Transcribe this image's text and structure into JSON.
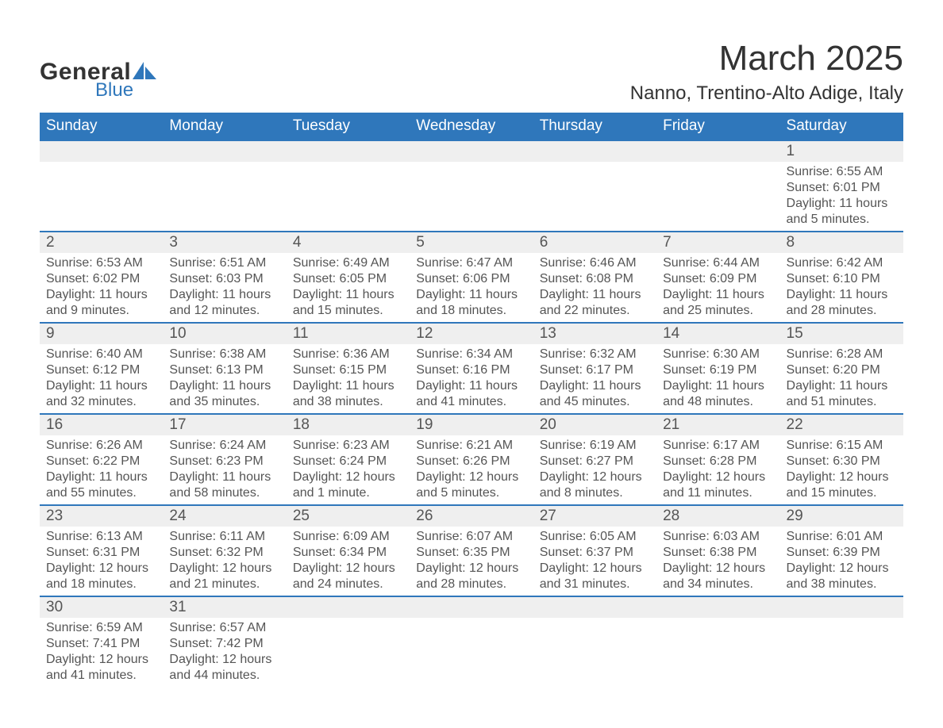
{
  "logo": {
    "text_top": "General",
    "text_bottom": "Blue",
    "accent_color": "#2f77bb"
  },
  "title": {
    "month_year": "March 2025",
    "location": "Nanno, Trentino-Alto Adige, Italy"
  },
  "calendar": {
    "header_bg": "#2f77bb",
    "header_fg": "#ffffff",
    "daynum_bg": "#efefef",
    "row_sep_color": "#2f77bb",
    "text_color": "#555555",
    "day_headers": [
      "Sunday",
      "Monday",
      "Tuesday",
      "Wednesday",
      "Thursday",
      "Friday",
      "Saturday"
    ],
    "weeks": [
      [
        null,
        null,
        null,
        null,
        null,
        null,
        {
          "n": "1",
          "sunrise": "Sunrise: 6:55 AM",
          "sunset": "Sunset: 6:01 PM",
          "daylight": "Daylight: 11 hours and 5 minutes."
        }
      ],
      [
        {
          "n": "2",
          "sunrise": "Sunrise: 6:53 AM",
          "sunset": "Sunset: 6:02 PM",
          "daylight": "Daylight: 11 hours and 9 minutes."
        },
        {
          "n": "3",
          "sunrise": "Sunrise: 6:51 AM",
          "sunset": "Sunset: 6:03 PM",
          "daylight": "Daylight: 11 hours and 12 minutes."
        },
        {
          "n": "4",
          "sunrise": "Sunrise: 6:49 AM",
          "sunset": "Sunset: 6:05 PM",
          "daylight": "Daylight: 11 hours and 15 minutes."
        },
        {
          "n": "5",
          "sunrise": "Sunrise: 6:47 AM",
          "sunset": "Sunset: 6:06 PM",
          "daylight": "Daylight: 11 hours and 18 minutes."
        },
        {
          "n": "6",
          "sunrise": "Sunrise: 6:46 AM",
          "sunset": "Sunset: 6:08 PM",
          "daylight": "Daylight: 11 hours and 22 minutes."
        },
        {
          "n": "7",
          "sunrise": "Sunrise: 6:44 AM",
          "sunset": "Sunset: 6:09 PM",
          "daylight": "Daylight: 11 hours and 25 minutes."
        },
        {
          "n": "8",
          "sunrise": "Sunrise: 6:42 AM",
          "sunset": "Sunset: 6:10 PM",
          "daylight": "Daylight: 11 hours and 28 minutes."
        }
      ],
      [
        {
          "n": "9",
          "sunrise": "Sunrise: 6:40 AM",
          "sunset": "Sunset: 6:12 PM",
          "daylight": "Daylight: 11 hours and 32 minutes."
        },
        {
          "n": "10",
          "sunrise": "Sunrise: 6:38 AM",
          "sunset": "Sunset: 6:13 PM",
          "daylight": "Daylight: 11 hours and 35 minutes."
        },
        {
          "n": "11",
          "sunrise": "Sunrise: 6:36 AM",
          "sunset": "Sunset: 6:15 PM",
          "daylight": "Daylight: 11 hours and 38 minutes."
        },
        {
          "n": "12",
          "sunrise": "Sunrise: 6:34 AM",
          "sunset": "Sunset: 6:16 PM",
          "daylight": "Daylight: 11 hours and 41 minutes."
        },
        {
          "n": "13",
          "sunrise": "Sunrise: 6:32 AM",
          "sunset": "Sunset: 6:17 PM",
          "daylight": "Daylight: 11 hours and 45 minutes."
        },
        {
          "n": "14",
          "sunrise": "Sunrise: 6:30 AM",
          "sunset": "Sunset: 6:19 PM",
          "daylight": "Daylight: 11 hours and 48 minutes."
        },
        {
          "n": "15",
          "sunrise": "Sunrise: 6:28 AM",
          "sunset": "Sunset: 6:20 PM",
          "daylight": "Daylight: 11 hours and 51 minutes."
        }
      ],
      [
        {
          "n": "16",
          "sunrise": "Sunrise: 6:26 AM",
          "sunset": "Sunset: 6:22 PM",
          "daylight": "Daylight: 11 hours and 55 minutes."
        },
        {
          "n": "17",
          "sunrise": "Sunrise: 6:24 AM",
          "sunset": "Sunset: 6:23 PM",
          "daylight": "Daylight: 11 hours and 58 minutes."
        },
        {
          "n": "18",
          "sunrise": "Sunrise: 6:23 AM",
          "sunset": "Sunset: 6:24 PM",
          "daylight": "Daylight: 12 hours and 1 minute."
        },
        {
          "n": "19",
          "sunrise": "Sunrise: 6:21 AM",
          "sunset": "Sunset: 6:26 PM",
          "daylight": "Daylight: 12 hours and 5 minutes."
        },
        {
          "n": "20",
          "sunrise": "Sunrise: 6:19 AM",
          "sunset": "Sunset: 6:27 PM",
          "daylight": "Daylight: 12 hours and 8 minutes."
        },
        {
          "n": "21",
          "sunrise": "Sunrise: 6:17 AM",
          "sunset": "Sunset: 6:28 PM",
          "daylight": "Daylight: 12 hours and 11 minutes."
        },
        {
          "n": "22",
          "sunrise": "Sunrise: 6:15 AM",
          "sunset": "Sunset: 6:30 PM",
          "daylight": "Daylight: 12 hours and 15 minutes."
        }
      ],
      [
        {
          "n": "23",
          "sunrise": "Sunrise: 6:13 AM",
          "sunset": "Sunset: 6:31 PM",
          "daylight": "Daylight: 12 hours and 18 minutes."
        },
        {
          "n": "24",
          "sunrise": "Sunrise: 6:11 AM",
          "sunset": "Sunset: 6:32 PM",
          "daylight": "Daylight: 12 hours and 21 minutes."
        },
        {
          "n": "25",
          "sunrise": "Sunrise: 6:09 AM",
          "sunset": "Sunset: 6:34 PM",
          "daylight": "Daylight: 12 hours and 24 minutes."
        },
        {
          "n": "26",
          "sunrise": "Sunrise: 6:07 AM",
          "sunset": "Sunset: 6:35 PM",
          "daylight": "Daylight: 12 hours and 28 minutes."
        },
        {
          "n": "27",
          "sunrise": "Sunrise: 6:05 AM",
          "sunset": "Sunset: 6:37 PM",
          "daylight": "Daylight: 12 hours and 31 minutes."
        },
        {
          "n": "28",
          "sunrise": "Sunrise: 6:03 AM",
          "sunset": "Sunset: 6:38 PM",
          "daylight": "Daylight: 12 hours and 34 minutes."
        },
        {
          "n": "29",
          "sunrise": "Sunrise: 6:01 AM",
          "sunset": "Sunset: 6:39 PM",
          "daylight": "Daylight: 12 hours and 38 minutes."
        }
      ],
      [
        {
          "n": "30",
          "sunrise": "Sunrise: 6:59 AM",
          "sunset": "Sunset: 7:41 PM",
          "daylight": "Daylight: 12 hours and 41 minutes."
        },
        {
          "n": "31",
          "sunrise": "Sunrise: 6:57 AM",
          "sunset": "Sunset: 7:42 PM",
          "daylight": "Daylight: 12 hours and 44 minutes."
        },
        null,
        null,
        null,
        null,
        null
      ]
    ]
  }
}
